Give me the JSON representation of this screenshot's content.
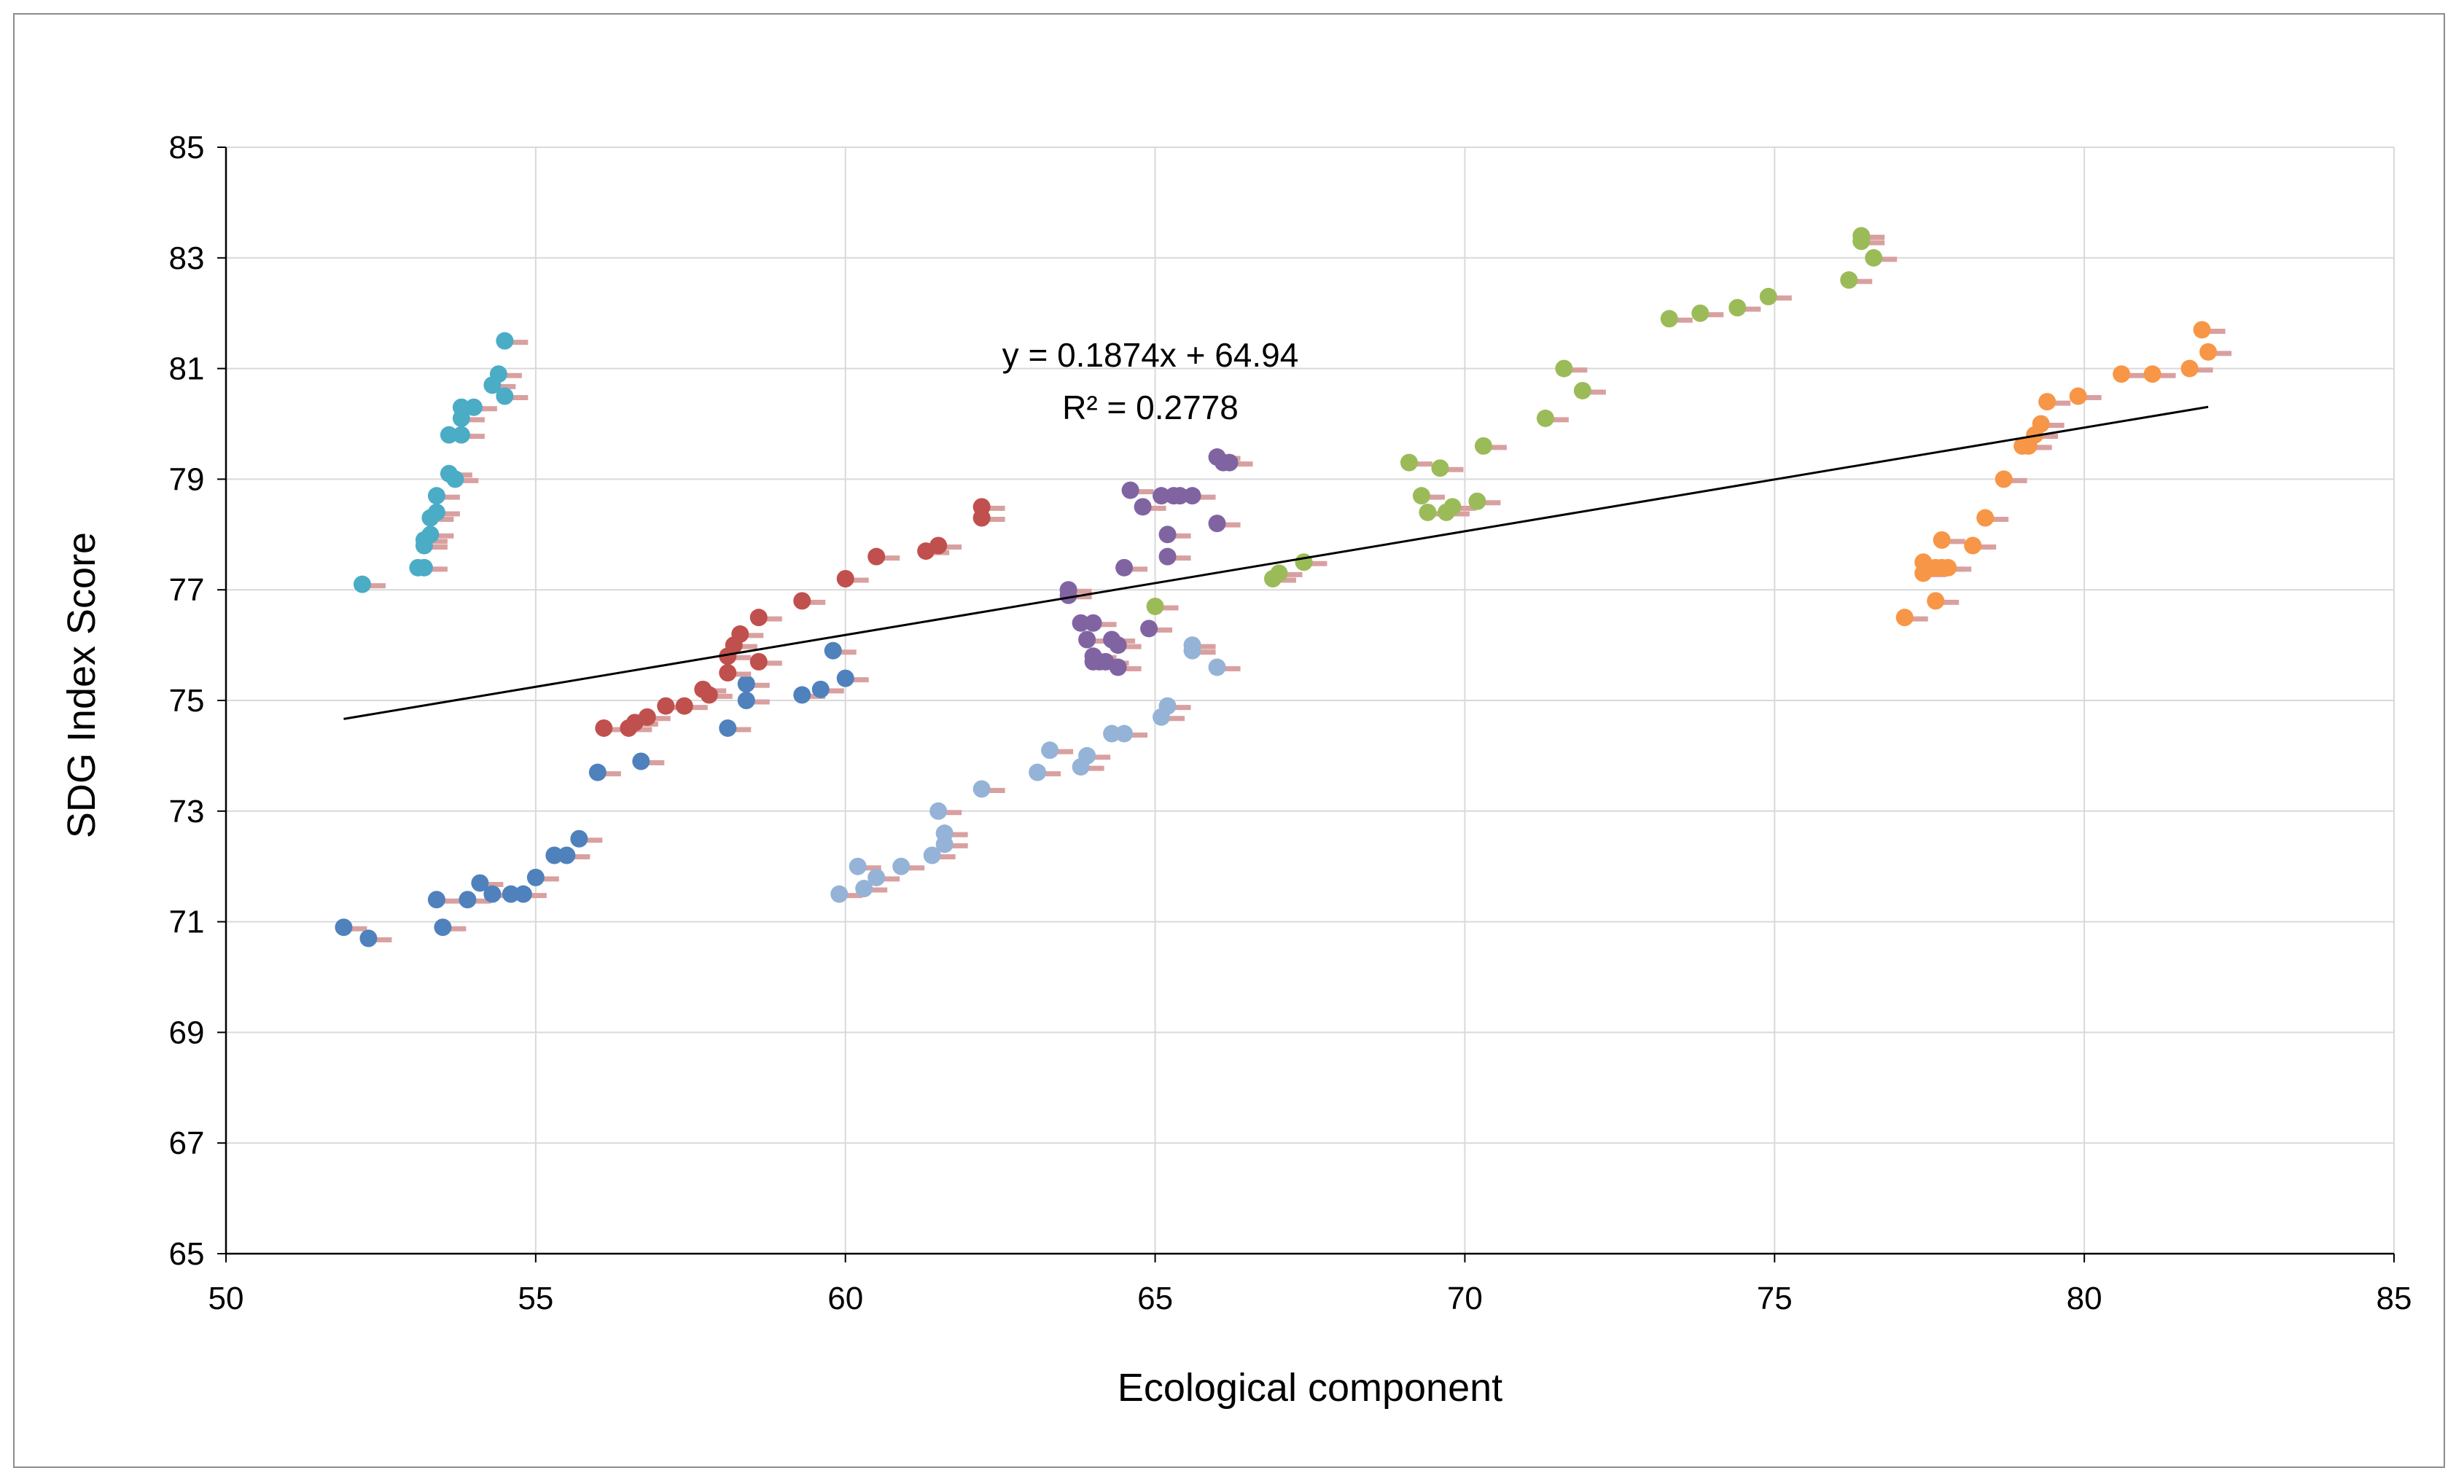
{
  "chart_data": {
    "type": "scatter",
    "xlabel": "Ecological component",
    "ylabel": "SDG Index Score",
    "xlim": [
      50,
      85
    ],
    "ylim": [
      65,
      85
    ],
    "xticks": [
      50,
      55,
      60,
      65,
      70,
      75,
      80,
      85
    ],
    "yticks": [
      65,
      67,
      69,
      71,
      73,
      75,
      77,
      79,
      81,
      83,
      85
    ],
    "grid": true,
    "legend": "none",
    "annotations": {
      "equation": "y = 0.1874x + 64.94",
      "r_squared": "R² = 0.2778"
    },
    "trendline": {
      "slope": 0.1874,
      "intercept": 64.94,
      "x_range": [
        51.9,
        82
      ]
    },
    "error_bar_color": "#d9a0a0",
    "series": [
      {
        "name": "series-1",
        "color": "#4f81bd",
        "points": [
          [
            51.9,
            70.9
          ],
          [
            52.3,
            70.7
          ],
          [
            53.4,
            71.4
          ],
          [
            53.5,
            70.9
          ],
          [
            53.9,
            71.4
          ],
          [
            54.1,
            71.7
          ],
          [
            54.3,
            71.5
          ],
          [
            54.6,
            71.5
          ],
          [
            54.8,
            71.5
          ],
          [
            55.0,
            71.8
          ],
          [
            55.3,
            72.2
          ],
          [
            55.5,
            72.2
          ],
          [
            55.7,
            72.5
          ],
          [
            56.0,
            73.7
          ],
          [
            56.7,
            73.9
          ],
          [
            58.1,
            74.5
          ],
          [
            58.4,
            75.3
          ],
          [
            58.4,
            75.0
          ],
          [
            59.3,
            75.1
          ],
          [
            59.6,
            75.2
          ],
          [
            59.8,
            75.9
          ],
          [
            60.0,
            75.4
          ]
        ]
      },
      {
        "name": "series-2",
        "color": "#c0504d",
        "points": [
          [
            56.1,
            74.5
          ],
          [
            56.5,
            74.5
          ],
          [
            56.6,
            74.6
          ],
          [
            56.8,
            74.7
          ],
          [
            57.1,
            74.9
          ],
          [
            57.4,
            74.9
          ],
          [
            57.7,
            75.2
          ],
          [
            57.8,
            75.1
          ],
          [
            58.1,
            75.5
          ],
          [
            58.1,
            75.8
          ],
          [
            58.2,
            76.0
          ],
          [
            58.3,
            76.2
          ],
          [
            58.6,
            75.7
          ],
          [
            58.6,
            76.5
          ],
          [
            59.3,
            76.8
          ],
          [
            60.0,
            77.2
          ],
          [
            60.5,
            77.6
          ],
          [
            61.3,
            77.7
          ],
          [
            61.5,
            77.8
          ],
          [
            62.2,
            78.5
          ],
          [
            62.2,
            78.3
          ]
        ]
      },
      {
        "name": "series-3",
        "color": "#9bbb59",
        "points": [
          [
            65.0,
            76.7
          ],
          [
            66.9,
            77.2
          ],
          [
            67.0,
            77.3
          ],
          [
            67.4,
            77.5
          ],
          [
            69.1,
            79.3
          ],
          [
            69.3,
            78.7
          ],
          [
            69.4,
            78.4
          ],
          [
            69.6,
            79.2
          ],
          [
            69.7,
            78.4
          ],
          [
            69.8,
            78.5
          ],
          [
            70.2,
            78.6
          ],
          [
            70.3,
            79.6
          ],
          [
            71.3,
            80.1
          ],
          [
            71.6,
            81.0
          ],
          [
            71.9,
            80.6
          ],
          [
            73.3,
            81.9
          ],
          [
            73.8,
            82.0
          ],
          [
            74.4,
            82.1
          ],
          [
            74.9,
            82.3
          ],
          [
            76.2,
            82.6
          ],
          [
            76.4,
            83.4
          ],
          [
            76.4,
            83.3
          ],
          [
            76.6,
            83.0
          ]
        ]
      },
      {
        "name": "series-4",
        "color": "#8064a2",
        "points": [
          [
            63.6,
            76.9
          ],
          [
            63.6,
            77.0
          ],
          [
            63.8,
            76.4
          ],
          [
            63.9,
            76.1
          ],
          [
            64.0,
            75.8
          ],
          [
            64.0,
            76.4
          ],
          [
            64.0,
            75.7
          ],
          [
            64.1,
            75.7
          ],
          [
            64.2,
            75.7
          ],
          [
            64.3,
            76.1
          ],
          [
            64.4,
            76.0
          ],
          [
            64.4,
            75.6
          ],
          [
            64.5,
            77.4
          ],
          [
            64.6,
            78.8
          ],
          [
            64.8,
            78.5
          ],
          [
            64.9,
            76.3
          ],
          [
            65.1,
            78.7
          ],
          [
            65.2,
            77.6
          ],
          [
            65.2,
            78.0
          ],
          [
            65.3,
            78.7
          ],
          [
            65.4,
            78.7
          ],
          [
            65.6,
            78.7
          ],
          [
            66.0,
            79.4
          ],
          [
            66.0,
            78.2
          ],
          [
            66.1,
            79.3
          ],
          [
            66.2,
            79.3
          ]
        ]
      },
      {
        "name": "series-5",
        "color": "#4bacc6",
        "points": [
          [
            52.2,
            77.1
          ],
          [
            53.1,
            77.4
          ],
          [
            53.2,
            77.4
          ],
          [
            53.2,
            77.8
          ],
          [
            53.2,
            77.9
          ],
          [
            53.3,
            78.0
          ],
          [
            53.3,
            78.3
          ],
          [
            53.4,
            78.4
          ],
          [
            53.4,
            78.7
          ],
          [
            53.6,
            79.1
          ],
          [
            53.6,
            79.8
          ],
          [
            53.7,
            79.0
          ],
          [
            53.8,
            80.1
          ],
          [
            53.8,
            80.3
          ],
          [
            53.8,
            79.8
          ],
          [
            54.0,
            80.3
          ],
          [
            54.3,
            80.7
          ],
          [
            54.4,
            80.9
          ],
          [
            54.5,
            80.5
          ],
          [
            54.5,
            81.5
          ]
        ]
      },
      {
        "name": "series-6",
        "color": "#f79646",
        "points": [
          [
            77.1,
            76.5
          ],
          [
            77.4,
            77.5
          ],
          [
            77.4,
            77.3
          ],
          [
            77.5,
            77.4
          ],
          [
            77.6,
            77.4
          ],
          [
            77.6,
            76.8
          ],
          [
            77.7,
            77.9
          ],
          [
            77.7,
            77.4
          ],
          [
            77.8,
            77.4
          ],
          [
            78.2,
            77.8
          ],
          [
            78.4,
            78.3
          ],
          [
            78.7,
            79.0
          ],
          [
            79.0,
            79.6
          ],
          [
            79.1,
            79.6
          ],
          [
            79.2,
            79.8
          ],
          [
            79.3,
            80.0
          ],
          [
            79.4,
            80.4
          ],
          [
            79.9,
            80.5
          ],
          [
            80.6,
            80.9
          ],
          [
            81.1,
            80.9
          ],
          [
            81.7,
            81.0
          ],
          [
            81.9,
            81.7
          ],
          [
            82.0,
            81.3
          ]
        ]
      },
      {
        "name": "series-7",
        "color": "#95b3d7",
        "points": [
          [
            59.9,
            71.5
          ],
          [
            60.2,
            72.0
          ],
          [
            60.3,
            71.6
          ],
          [
            60.5,
            71.8
          ],
          [
            60.9,
            72.0
          ],
          [
            61.4,
            72.2
          ],
          [
            61.5,
            73.0
          ],
          [
            61.6,
            72.6
          ],
          [
            61.6,
            72.4
          ],
          [
            62.2,
            73.4
          ],
          [
            63.1,
            73.7
          ],
          [
            63.3,
            74.1
          ],
          [
            63.8,
            73.8
          ],
          [
            63.9,
            74.0
          ],
          [
            64.3,
            74.4
          ],
          [
            64.5,
            74.4
          ],
          [
            65.1,
            74.7
          ],
          [
            65.2,
            74.9
          ],
          [
            65.6,
            75.9
          ],
          [
            65.6,
            76.0
          ],
          [
            66.0,
            75.6
          ]
        ]
      }
    ]
  }
}
